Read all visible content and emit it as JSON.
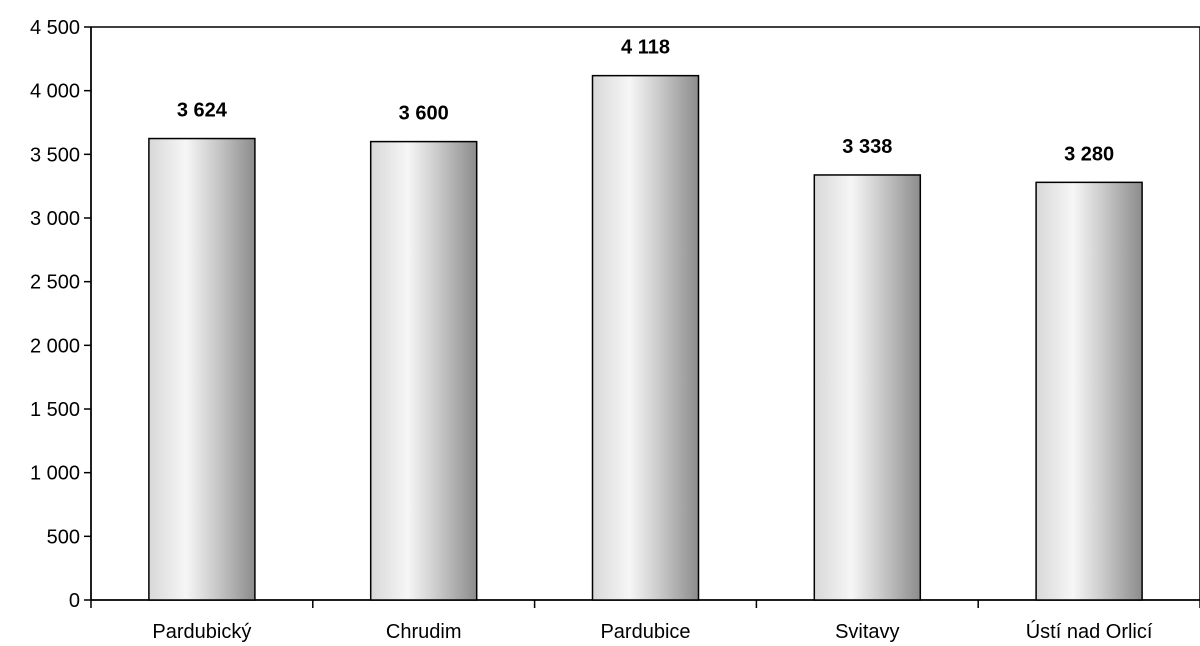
{
  "chart_data": {
    "type": "bar",
    "title": "",
    "xlabel": "",
    "ylabel": "",
    "categories": [
      "Pardubický",
      "Chrudim",
      "Pardubice",
      "Svitavy",
      "Ústí nad Orlicí"
    ],
    "values": [
      3624,
      3600,
      4118,
      3338,
      3280
    ],
    "value_labels": [
      "3 624",
      "3 600",
      "4 118",
      "3 338",
      "3 280"
    ],
    "ylim": [
      0,
      4500
    ],
    "y_ticks": [
      0,
      500,
      1000,
      1500,
      2000,
      2500,
      3000,
      3500,
      4000,
      4500
    ],
    "y_tick_labels": [
      "0",
      "500",
      "1 000",
      "1 500",
      "2 000",
      "2 500",
      "3 000",
      "3 500",
      "4 000",
      "4 500"
    ],
    "grid": false,
    "legend": "none",
    "bar_style": "gray cylindrical gradient with black outline"
  }
}
